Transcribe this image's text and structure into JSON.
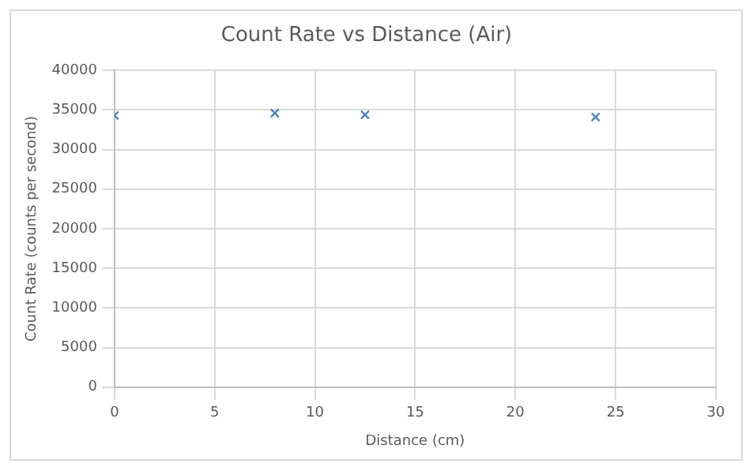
{
  "chart_data": {
    "type": "scatter",
    "title": "Count Rate vs Distance (Air)",
    "xlabel": "Distance (cm)",
    "ylabel": "Count Rate (counts per second)",
    "x": [
      0,
      8,
      12.5,
      24
    ],
    "series": [
      {
        "color": "#4f81bd",
        "values": [
          34300,
          34600,
          34400,
          34100
        ]
      }
    ],
    "xlim": [
      0,
      30
    ],
    "xticks": [
      0,
      5,
      10,
      15,
      20,
      25,
      30
    ],
    "ylim": [
      0,
      40000
    ],
    "yticks": [
      0,
      5000,
      10000,
      15000,
      20000,
      25000,
      30000,
      35000,
      40000
    ],
    "grid": true,
    "legend": false,
    "marker": "cross"
  }
}
